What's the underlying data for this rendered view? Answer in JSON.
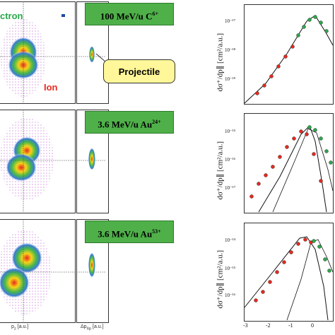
{
  "left": {
    "top_tags": {
      "electron": "ctron",
      "ion": "Ion"
    },
    "callout": "Projectile",
    "rows": [
      {
        "beam": "100 MeV/u C",
        "charge": "6+"
      },
      {
        "beam": "3.6 MeV/u  Au",
        "charge": "24+"
      },
      {
        "beam": "3.6 MeV/u  Au",
        "charge": "53+"
      }
    ],
    "x_axis_labels": {
      "left": "p",
      "left_sub": "z",
      "left_unit": " [a.u.]",
      "right": "Δp",
      "right_sub": "IIp",
      "right_unit": " [a.u.]"
    }
  },
  "right": {
    "ylabel": "dσ⁺/dp∥ [cm²/a.u.]",
    "xticks": [
      "-3",
      "-2",
      "-1",
      "0"
    ],
    "panels": [
      {
        "yticks": [
          "10⁻¹⁷",
          "10⁻¹⁸",
          "10⁻¹⁹"
        ]
      },
      {
        "yticks": [
          "10⁻¹⁵",
          "10⁻¹⁶",
          "10⁻¹⁷"
        ]
      },
      {
        "yticks": [
          "10⁻¹⁴",
          "10⁻¹⁵",
          "10⁻¹⁶"
        ]
      }
    ]
  },
  "colors": {
    "label_green": "#4fb04a",
    "callout_yellow": "#fff799",
    "ion_red": "#e8281e",
    "electron_green": "#2aa84a"
  }
}
